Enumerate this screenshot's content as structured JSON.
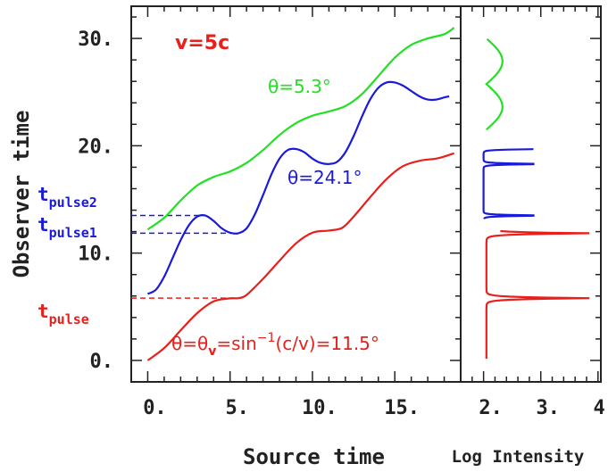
{
  "colors": {
    "red": "#e8201c",
    "blue": "#1a1adc",
    "green": "#22e022",
    "axis": "#222222"
  },
  "chart_data": [
    {
      "type": "line",
      "xlabel": "Source time",
      "ylabel": "Observer time",
      "xlim": [
        -1,
        19
      ],
      "ylim": [
        -2,
        33
      ],
      "xticks": [
        "0.",
        "5.",
        "10.",
        "15."
      ],
      "yticks": [
        "0.",
        "10.",
        "20.",
        "30."
      ],
      "xtick_values": [
        0,
        5,
        10,
        15
      ],
      "ytick_values": [
        0,
        10,
        20,
        30
      ],
      "speed_label": "v=5c",
      "series": [
        {
          "name": "θ=θv=sin−1(c/v)=11.5°",
          "color": "red",
          "x": [
            0,
            1,
            2,
            3,
            4,
            5,
            5.5,
            6,
            7,
            8,
            9,
            10,
            11,
            11.8,
            12.5,
            13.5,
            14.5,
            15.5,
            16.5,
            17.5,
            18,
            18.6
          ],
          "y": [
            0,
            1.15,
            2.8,
            4.4,
            5.5,
            5.78,
            5.8,
            6.1,
            7.6,
            9.3,
            10.9,
            11.9,
            12.1,
            12.35,
            13.4,
            15.2,
            16.9,
            18.1,
            18.6,
            18.8,
            19.0,
            19.3
          ]
        },
        {
          "name": "θ=24.1°",
          "color": "blue",
          "x": [
            0,
            0.5,
            1,
            1.5,
            2,
            2.5,
            3,
            3.5,
            4,
            4.5,
            5,
            5.5,
            6,
            6.5,
            7,
            7.5,
            8,
            8.5,
            9,
            9.5,
            10,
            10.5,
            11,
            11.5,
            12,
            12.5,
            13,
            13.5,
            14,
            14.5,
            15,
            15.5,
            16,
            16.5,
            17,
            17.5,
            18,
            18.3
          ],
          "y": [
            6.2,
            6.6,
            7.8,
            9.5,
            11.2,
            12.6,
            13.4,
            13.5,
            13.0,
            12.3,
            11.9,
            11.85,
            12.3,
            13.6,
            15.4,
            17.3,
            18.8,
            19.6,
            19.7,
            19.4,
            18.8,
            18.4,
            18.3,
            18.5,
            19.4,
            20.9,
            22.7,
            24.3,
            25.4,
            25.9,
            25.9,
            25.6,
            25.1,
            24.6,
            24.3,
            24.3,
            24.5,
            24.6
          ]
        },
        {
          "name": "θ=5.3°",
          "color": "green",
          "x": [
            0,
            1,
            2,
            3,
            4,
            5,
            6,
            7,
            8,
            9,
            10,
            11,
            12,
            13,
            14,
            15,
            16,
            17,
            18,
            18.6
          ],
          "y": [
            12.2,
            13.3,
            14.9,
            16.3,
            17.1,
            17.6,
            18.4,
            19.6,
            21.0,
            22.1,
            22.8,
            23.2,
            23.7,
            24.8,
            26.5,
            28.2,
            29.4,
            30.0,
            30.4,
            31.0
          ]
        }
      ],
      "reference_lines": [
        {
          "y": 5.8,
          "color": "red",
          "x_end": 5.5
        },
        {
          "y": 11.85,
          "color": "blue",
          "x_end": 5.5
        },
        {
          "y": 13.5,
          "color": "blue",
          "x_end": 3.5
        }
      ],
      "pulse_labels": [
        {
          "base": "t",
          "sub": "pulse",
          "color": "red"
        },
        {
          "base": "t",
          "sub": "pulse1",
          "color": "blue"
        },
        {
          "base": "t",
          "sub": "pulse2",
          "color": "blue"
        }
      ],
      "series_labels": [
        {
          "text": "θ=5.3°",
          "color": "green"
        },
        {
          "text": "θ=24.1°",
          "color": "blue"
        }
      ],
      "red_label": {
        "parts": [
          "θ=θ",
          "v",
          "=sin",
          "−1",
          "(c/v)=11.5°"
        ]
      }
    },
    {
      "type": "line",
      "xlabel": "Log Intensity",
      "xlim": [
        1.6,
        4.05
      ],
      "xticks": [
        "2.",
        "3.",
        "4."
      ],
      "xtick_values": [
        2,
        3,
        4
      ],
      "series": [
        {
          "name": "red",
          "color": "red",
          "y_range": [
            0,
            12.1
          ],
          "peaks": [
            5.8,
            11.85
          ],
          "peak_x": 3.85,
          "base": 1.9,
          "top_x": 2.05,
          "width": 1.3
        },
        {
          "name": "blue",
          "color": "blue",
          "y_range": [
            13.2,
            19.7
          ],
          "peaks": [
            13.5,
            18.3,
            19.7
          ],
          "peak_x": 3.25,
          "base": 1.78,
          "width": 0.2
        },
        {
          "name": "green",
          "color": "green",
          "y_range": [
            21.5,
            30.0
          ]
        }
      ]
    }
  ]
}
